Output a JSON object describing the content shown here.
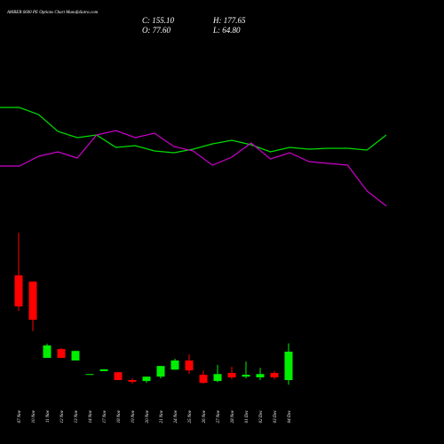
{
  "header": {
    "title": "AMBER 6600  PE Options  Chart MunafaSutra.com",
    "close": "C: 155.10",
    "open": "O: 77.60",
    "high": "H: 177.65",
    "low": "L: 64.80"
  },
  "chart_data": [
    {
      "type": "line",
      "ylim": [
        0,
        140
      ],
      "series": [
        {
          "color": "#00dd00",
          "values": [
            119,
            119,
            111,
            92,
            85,
            88,
            74,
            76,
            70,
            68,
            72,
            78,
            82,
            77,
            69,
            74,
            72,
            73,
            73,
            71,
            88
          ]
        },
        {
          "color": "#cc00cc",
          "values": [
            53,
            53,
            64,
            69,
            62,
            88,
            93,
            85,
            90,
            75,
            70,
            54,
            63,
            79,
            61,
            68,
            58,
            56,
            54,
            25,
            8
          ]
        }
      ]
    },
    {
      "type": "candlestick",
      "categories": [
        "07 Nov",
        "10 Nov",
        "11 Nov",
        "12 Nov",
        "13 Nov",
        "14 Nov",
        "17 Nov",
        "18 Nov",
        "19 Nov",
        "20 Nov",
        "21 Nov",
        "24 Nov",
        "25 Nov",
        "26 Nov",
        "27 Nov",
        "28 Nov",
        "01 Dec",
        "02 Dec",
        "03 Dec",
        "04 Dec"
      ],
      "open": [
        363,
        346,
        138,
        162,
        131,
        94,
        102,
        99,
        77.6,
        75,
        87,
        106,
        131,
        92,
        75,
        97,
        87,
        85,
        97,
        77.6
      ],
      "high": [
        479,
        346,
        177,
        165,
        157,
        94,
        107,
        99,
        82,
        87,
        116,
        136,
        148,
        104,
        119,
        114,
        128,
        111,
        102,
        177.65
      ],
      "low": [
        266,
        211,
        138,
        138,
        131,
        94,
        102,
        77.6,
        68,
        70,
        82,
        106,
        95,
        68,
        72,
        80,
        82,
        77.6,
        80,
        64.8
      ],
      "close": [
        278.5,
        242,
        172,
        138,
        157,
        94,
        107,
        77.6,
        73,
        87,
        116,
        131,
        104,
        70,
        94,
        85,
        92,
        94,
        85,
        155.1
      ],
      "up_color": "#00ee00",
      "down_color": "#ff0000"
    }
  ]
}
